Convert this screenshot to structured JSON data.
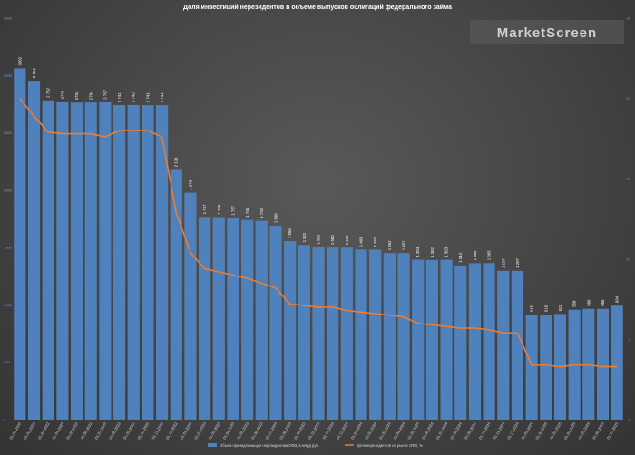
{
  "chart_data": {
    "type": "bar",
    "title": "Доля инвестиций нерезидентов в объеме выпусков облигаций федерального займа",
    "watermark": "MarketScreen",
    "categories": [
      "01.01.2022",
      "01.02.2022",
      "01.03.2022",
      "01.04.2022",
      "01.05.2022",
      "01.06.2022",
      "01.07.2022",
      "01.08.2022",
      "01.09.2022",
      "01.10.2022",
      "01.11.2022",
      "01.12.2022",
      "01.01.2023",
      "01.02.2023",
      "01.03.2023",
      "01.04.2023",
      "01.05.2023",
      "01.06.2023",
      "01.07.2023",
      "01.08.2023",
      "01.09.2023",
      "01.10.2023",
      "01.11.2023",
      "01.12.2023",
      "01.01.2024",
      "01.02.2024",
      "01.03.2024",
      "01.04.2024",
      "01.05.2024",
      "01.06.2024",
      "01.07.2024",
      "01.08.2024",
      "01.09.2024",
      "01.10.2024",
      "01.11.2024",
      "01.12.2024",
      "01.01.2025",
      "01.02.2025",
      "01.03.2025",
      "01.04.2025",
      "01.05.2025",
      "01.06.2025",
      "01.07.2025"
    ],
    "series": [
      {
        "name": "Объем принадлежащих нерезидентам ОФЗ, в млрд руб.",
        "type": "bar",
        "axis": "left",
        "color": "#4f81bd",
        "values": [
          3062,
          2954,
          2782,
          2770,
          2763,
          2764,
          2767,
          2741,
          2742,
          2741,
          2741,
          2178,
          1978,
          1767,
          1766,
          1757,
          1740,
          1732,
          1690,
          1556,
          1522,
          1505,
          1500,
          1499,
          1483,
          1482,
          1452,
          1452,
          1394,
          1392,
          1393,
          1344,
          1364,
          1365,
          1297,
          1297,
          915,
          916,
          922,
          958,
          966,
          966,
          994
        ],
        "labels": [
          "3062",
          "2 954",
          "2 782",
          "2770",
          "2763",
          "2764",
          "2 767",
          "2 741",
          "2 742",
          "2 741",
          "2 741",
          "2 178",
          "1 978",
          "1 767",
          "1 766",
          "1 757",
          "1 740",
          "1 732",
          "1 690",
          "1 556",
          "1 522",
          "1 505",
          "1 500",
          "1 499",
          "1 483",
          "1 482",
          "1 452",
          "1 452",
          "1 394",
          "1 392",
          "1 393",
          "1 344",
          "1 364",
          "1 365",
          "1 297",
          "1 297",
          "915",
          "916",
          "922",
          "958",
          "966",
          "966",
          "994"
        ]
      },
      {
        "name": "Доля нерезидентов на рынке ОФЗ, %",
        "type": "line",
        "axis": "right",
        "color": "#ed7d31",
        "values": [
          20.0,
          18.9,
          17.9,
          17.8,
          17.8,
          17.8,
          17.6,
          18.0,
          18.0,
          18.0,
          17.6,
          12.9,
          10.4,
          9.4,
          9.2,
          9.0,
          8.8,
          8.5,
          8.2,
          7.2,
          7.1,
          7.0,
          7.0,
          6.8,
          6.7,
          6.6,
          6.5,
          6.4,
          6.0,
          5.9,
          5.8,
          5.7,
          5.7,
          5.6,
          5.4,
          5.4,
          3.4,
          3.4,
          3.3,
          3.4,
          3.4,
          3.3,
          3.3
        ]
      }
    ],
    "y_left": {
      "min": 0,
      "max": 3500,
      "ticks": [
        "0",
        "500",
        "1000",
        "1500",
        "2000",
        "2500",
        "3000",
        "3500"
      ]
    },
    "y_right": {
      "min": 0,
      "max": 25,
      "ticks": [
        "0",
        "5",
        "10",
        "15",
        "20",
        "25"
      ]
    },
    "legend_position": "bottom",
    "grid": false
  }
}
